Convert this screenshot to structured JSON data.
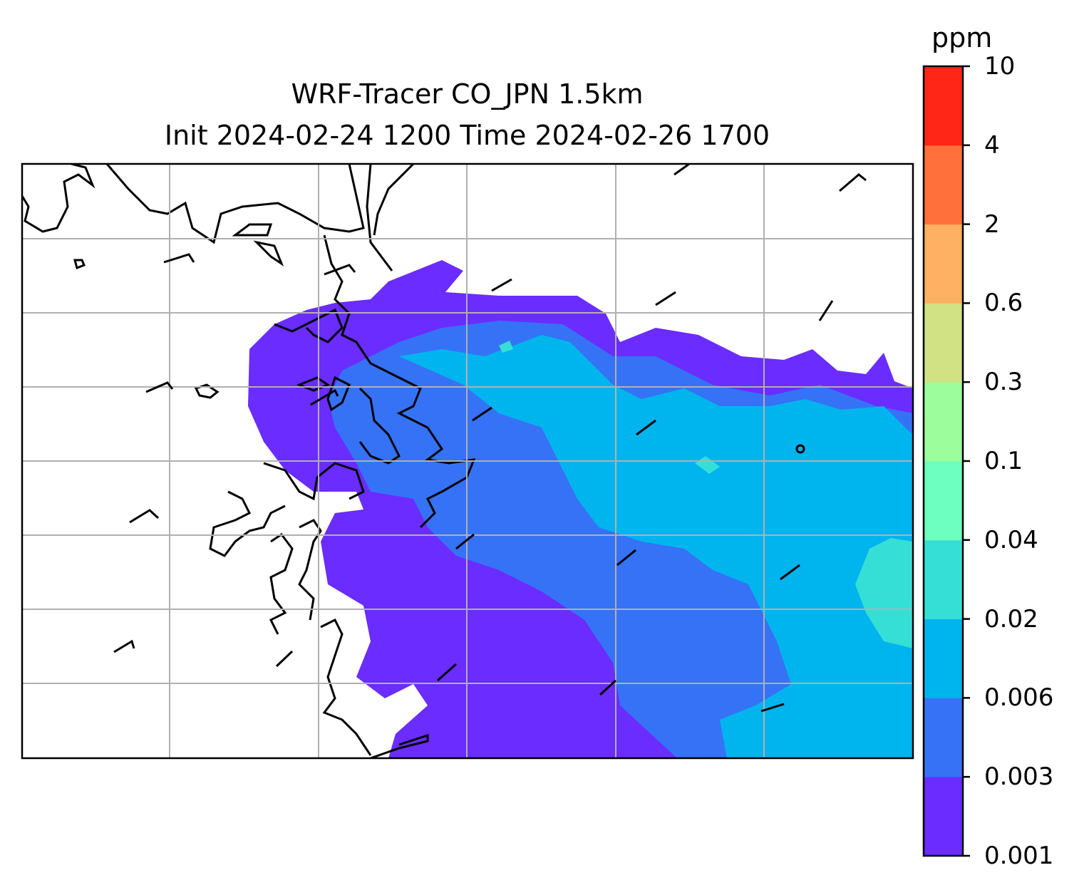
{
  "title_line1": "WRF-Tracer CO_JPN 1.5km",
  "title_line2": "Init 2024-02-24 1200 Time 2024-02-26 1700",
  "colorbar": {
    "unit": "ppm",
    "levels": [
      "0.001",
      "0.003",
      "0.006",
      "0.02",
      "0.04",
      "0.1",
      "0.3",
      "0.6",
      "2",
      "4",
      "10"
    ],
    "colors": [
      "#6a2cff",
      "#3672f6",
      "#00b4ee",
      "#36dfd5",
      "#6cffc0",
      "#9bfd9b",
      "#d1e284",
      "#feb063",
      "#ff703b",
      "#ff2617"
    ]
  },
  "map": {
    "grid": "on",
    "coastline_color": "#000000",
    "gridline_color": "#b0b0b0"
  }
}
